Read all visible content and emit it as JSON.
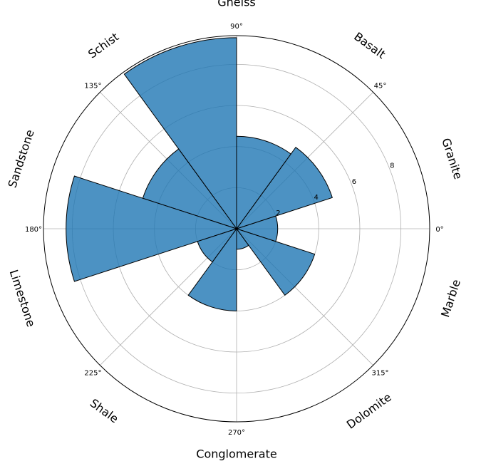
{
  "chart_data": {
    "type": "bar",
    "subtype": "polar",
    "title": "",
    "categories": [
      "Granite",
      "Basalt",
      "Gneiss",
      "Schist",
      "Sandstone",
      "Limestone",
      "Shale",
      "Conglomerate",
      "Dolomite",
      "Marble"
    ],
    "values": [
      2.0,
      4.9,
      4.5,
      9.3,
      4.8,
      8.3,
      2.0,
      4.0,
      1.0,
      4.0
    ],
    "rlim": [
      0,
      9.4
    ],
    "radial_ticks": [
      "2",
      "4",
      "6",
      "8"
    ],
    "radial_tick_values": [
      2,
      4,
      6,
      8
    ],
    "angle_ticks": [
      "0°",
      "45°",
      "90°",
      "135°",
      "180°",
      "225°",
      "270°",
      "315°"
    ],
    "angle_tick_values": [
      0,
      45,
      90,
      135,
      180,
      225,
      270,
      315
    ],
    "grid": true,
    "bar_color": "#1f77b4",
    "edge_color": "#000000"
  }
}
